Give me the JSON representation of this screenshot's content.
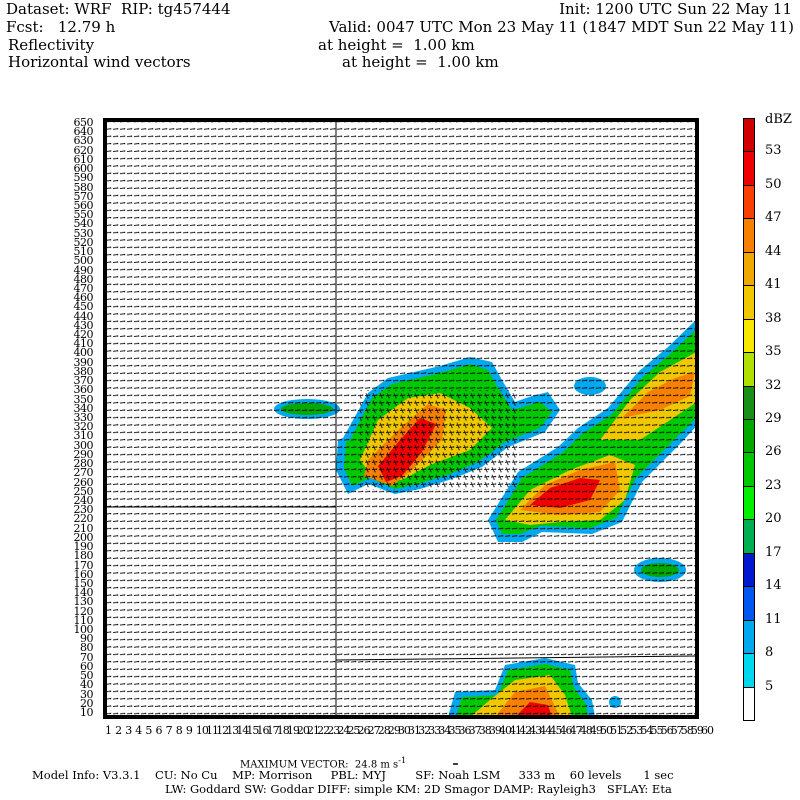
{
  "header": {
    "dataset": "Dataset: WRF  RIP: tg457444",
    "init": "Init: 1200 UTC Sun 22 May 11",
    "fcst": "Fcst:   12.79 h",
    "valid": "Valid: 0047 UTC Mon 23 May 11 (1847 MDT Sun 22 May 11)",
    "field1": "Reflectivity",
    "field1_level": "at height =  1.00 km",
    "field2": "Horizontal wind vectors",
    "field2_level": "at height =  1.00 km"
  },
  "footer": {
    "max_vector": "MAXIMUM VECTOR:  24.8 m s",
    "max_vector_exp": "-1",
    "model_info": "Model Info: V3.3.1    CU: No Cu    MP: Morrison     PBL: MYJ        SF: Noah LSM     333 m    60 levels      1 sec",
    "physics": "LW: Goddard SW: Goddar DIFF: simple KM: 2D Smagor DAMP: Rayleigh3   SFLAY: Eta"
  },
  "chart_data": {
    "type": "heatmap",
    "field": "Reflectivity",
    "overlay": "Horizontal wind vectors",
    "y_ticks": [
      10,
      20,
      30,
      40,
      50,
      60,
      70,
      80,
      90,
      100,
      110,
      120,
      130,
      140,
      150,
      160,
      170,
      180,
      190,
      200,
      210,
      220,
      230,
      240,
      250,
      260,
      270,
      280,
      290,
      300,
      310,
      320,
      330,
      340,
      350,
      360,
      370,
      380,
      390,
      400,
      410,
      420,
      430,
      440,
      450,
      460,
      470,
      480,
      490,
      500,
      510,
      520,
      530,
      540,
      550,
      560,
      570,
      580,
      590,
      600,
      610,
      620,
      630,
      640,
      650
    ],
    "x_ticks": [
      1,
      2,
      3,
      4,
      5,
      6,
      7,
      8,
      9,
      10,
      11,
      12,
      13,
      14,
      15,
      16,
      17,
      18,
      19,
      20,
      21,
      22,
      23,
      24,
      25,
      26,
      27,
      28,
      29,
      30,
      31,
      32,
      33,
      34,
      35,
      36,
      37,
      38,
      39,
      40,
      41,
      42,
      43,
      44,
      45,
      46,
      47,
      48,
      49,
      50,
      51,
      52,
      53,
      54,
      55,
      56,
      57,
      58,
      59,
      60
    ],
    "colorbar": {
      "unit": "dBZ",
      "levels": [
        "5",
        "8",
        "11",
        "14",
        "17",
        "20",
        "23",
        "26",
        "29",
        "32",
        "35",
        "38",
        "41",
        "44",
        "47",
        "50",
        "53"
      ],
      "colors": [
        "#ffffff",
        "#00d8f0",
        "#00a8f0",
        "#0058f0",
        "#0018d0",
        "#00b050",
        "#00f000",
        "#00c800",
        "#00a800",
        "#189018",
        "#b0e000",
        "#f8e800",
        "#f0c800",
        "#f0a800",
        "#f88000",
        "#f84000",
        "#f00000",
        "#d00000"
      ]
    }
  }
}
